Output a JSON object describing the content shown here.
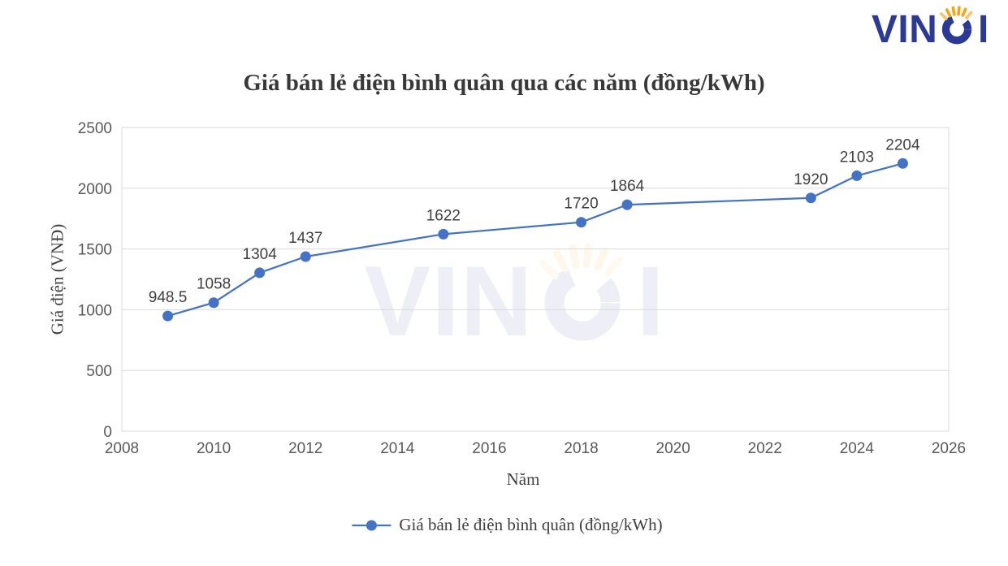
{
  "logo": {
    "text_left": "VIN",
    "text_right": "I",
    "brand_blue": "#2b3a94",
    "ray_orange": "#f5a51d",
    "ray_light": "#fbc36a"
  },
  "chart_data": {
    "type": "line",
    "title": "Giá bán lẻ điện bình quân qua các năm (đồng/kWh)",
    "xlabel": "Năm",
    "ylabel": "Giá điện (VNĐ)",
    "x": [
      2009,
      2010,
      2011,
      2012,
      2015,
      2018,
      2019,
      2023,
      2024,
      2025
    ],
    "y": [
      948.5,
      1058,
      1304,
      1437,
      1622,
      1720,
      1864,
      1920,
      2103,
      2204
    ],
    "labels": [
      "948.5",
      "1058",
      "1304",
      "1437",
      "1622",
      "1720",
      "1864",
      "1920",
      "2103",
      "2204"
    ],
    "xlim": [
      2008,
      2026
    ],
    "ylim": [
      0,
      2500
    ],
    "x_ticks": [
      2008,
      2010,
      2012,
      2014,
      2016,
      2018,
      2020,
      2022,
      2024,
      2026
    ],
    "y_ticks": [
      0,
      500,
      1000,
      1500,
      2000,
      2500
    ],
    "grid": true,
    "grid_color": "#d9d9d9",
    "line_color": "#4472c4",
    "tick_color": "#595959",
    "label_color": "#3f3f3f",
    "legend": {
      "label": "Giá bán lẻ điện bình quân (đồng/kWh)",
      "position": "bottom"
    }
  }
}
